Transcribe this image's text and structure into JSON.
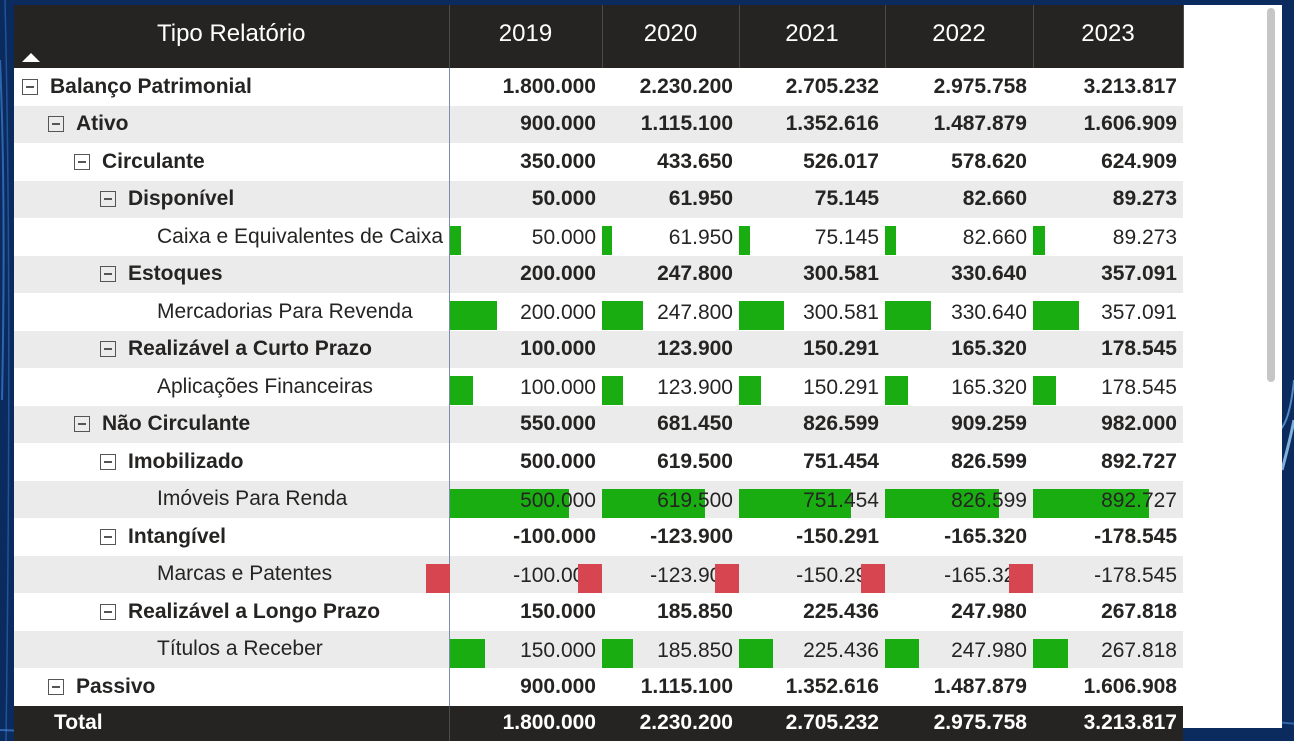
{
  "matrix": {
    "header": {
      "row_label": "Tipo Relatório",
      "years": [
        "2019",
        "2020",
        "2021",
        "2022",
        "2023"
      ]
    },
    "rows": [
      {
        "label": "Balanço Patrimonial",
        "level": 0,
        "type": "group",
        "values": [
          "1.800.000",
          "2.230.200",
          "2.705.232",
          "2.975.758",
          "3.213.817"
        ]
      },
      {
        "label": "Ativo",
        "level": 1,
        "type": "group",
        "values": [
          "900.000",
          "1.115.100",
          "1.352.616",
          "1.487.879",
          "1.606.909"
        ]
      },
      {
        "label": "Circulante",
        "level": 2,
        "type": "group",
        "values": [
          "350.000",
          "433.650",
          "526.017",
          "578.620",
          "624.909"
        ]
      },
      {
        "label": "Disponível",
        "level": 3,
        "type": "group",
        "values": [
          "50.000",
          "61.950",
          "75.145",
          "82.660",
          "89.273"
        ]
      },
      {
        "label": "Caixa e Equivalentes de Caixa",
        "level": 4,
        "type": "leaf",
        "values": [
          "50.000",
          "61.950",
          "75.145",
          "82.660",
          "89.273"
        ],
        "bar": [
          0.1,
          0.1,
          0.1,
          0.1,
          0.1
        ]
      },
      {
        "label": "Estoques",
        "level": 3,
        "type": "group",
        "values": [
          "200.000",
          "247.800",
          "300.581",
          "330.640",
          "357.091"
        ]
      },
      {
        "label": "Mercadorias Para Revenda",
        "level": 4,
        "type": "leaf",
        "values": [
          "200.000",
          "247.800",
          "300.581",
          "330.640",
          "357.091"
        ],
        "bar": [
          0.4,
          0.4,
          0.4,
          0.4,
          0.4
        ]
      },
      {
        "label": "Realizável a Curto Prazo",
        "level": 3,
        "type": "group",
        "values": [
          "100.000",
          "123.900",
          "150.291",
          "165.320",
          "178.545"
        ]
      },
      {
        "label": "Aplicações Financeiras",
        "level": 4,
        "type": "leaf",
        "values": [
          "100.000",
          "123.900",
          "150.291",
          "165.320",
          "178.545"
        ],
        "bar": [
          0.2,
          0.2,
          0.2,
          0.2,
          0.2
        ]
      },
      {
        "label": "Não Circulante",
        "level": 2,
        "type": "group",
        "values": [
          "550.000",
          "681.450",
          "826.599",
          "909.259",
          "982.000"
        ]
      },
      {
        "label": "Imobilizado",
        "level": 3,
        "type": "group",
        "values": [
          "500.000",
          "619.500",
          "751.454",
          "826.599",
          "892.727"
        ]
      },
      {
        "label": "Imóveis Para Renda",
        "level": 4,
        "type": "leaf",
        "values": [
          "500.000",
          "619.500",
          "751.454",
          "826.599",
          "892.727"
        ],
        "bar": [
          1.0,
          1.0,
          1.0,
          1.0,
          1.0
        ]
      },
      {
        "label": "Intangível",
        "level": 3,
        "type": "group",
        "values": [
          "-100.000",
          "-123.900",
          "-150.291",
          "-165.320",
          "-178.545"
        ]
      },
      {
        "label": "Marcas e Patentes",
        "level": 4,
        "type": "leaf",
        "values": [
          "-100.000",
          "-123.900",
          "-150.291",
          "-165.320",
          "-178.545"
        ],
        "bar": [
          -0.2,
          -0.2,
          -0.2,
          -0.2,
          -0.2
        ]
      },
      {
        "label": "Realizável a Longo Prazo",
        "level": 3,
        "type": "group",
        "values": [
          "150.000",
          "185.850",
          "225.436",
          "247.980",
          "267.818"
        ]
      },
      {
        "label": "Títulos a Receber",
        "level": 4,
        "type": "leaf",
        "values": [
          "150.000",
          "185.850",
          "225.436",
          "247.980",
          "267.818"
        ],
        "bar": [
          0.3,
          0.3,
          0.3,
          0.3,
          0.3
        ]
      },
      {
        "label": "Passivo",
        "level": 1,
        "type": "group",
        "values": [
          "900.000",
          "1.115.100",
          "1.352.616",
          "1.487.879",
          "1.606.908"
        ]
      }
    ],
    "total": {
      "label": "Total",
      "values": [
        "1.800.000",
        "2.230.200",
        "2.705.232",
        "2.975.758",
        "3.213.817"
      ]
    },
    "colors": {
      "positive_bar": "#1aad12",
      "negative_bar": "#d64550",
      "header_bg": "#252423",
      "row_stripe": "#ebebeb"
    }
  }
}
